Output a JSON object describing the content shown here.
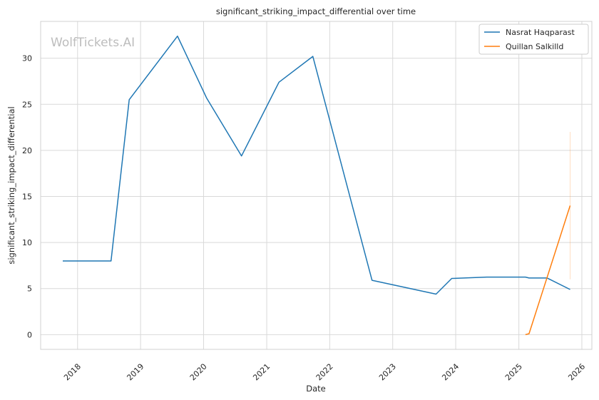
{
  "chart_data": {
    "type": "line",
    "title": "significant_striking_impact_differential over time",
    "xlabel": "Date",
    "ylabel": "significant_striking_impact_differential",
    "xlim": [
      "2017-06-01",
      "2026-02-28"
    ],
    "ylim": [
      -1.6,
      34.0
    ],
    "x_ticks": [
      "2018",
      "2019",
      "2020",
      "2021",
      "2022",
      "2023",
      "2024",
      "2025",
      "2026"
    ],
    "y_ticks": [
      0,
      5,
      10,
      15,
      20,
      25,
      30
    ],
    "grid": true,
    "legend_position": "top-right",
    "watermark": "WolfTickets.AI",
    "series": [
      {
        "name": "Nasrat Haqparast",
        "color": "#1f77b4",
        "points": [
          {
            "date": "2017-10-07",
            "value": 8.0
          },
          {
            "date": "2018-07-14",
            "value": 8.0
          },
          {
            "date": "2018-10-27",
            "value": 25.5
          },
          {
            "date": "2019-08-03",
            "value": 32.4
          },
          {
            "date": "2020-01-18",
            "value": 25.7
          },
          {
            "date": "2020-08-08",
            "value": 19.4
          },
          {
            "date": "2021-03-13",
            "value": 27.4
          },
          {
            "date": "2021-09-25",
            "value": 30.2
          },
          {
            "date": "2022-09-03",
            "value": 5.9
          },
          {
            "date": "2023-09-09",
            "value": 4.4
          },
          {
            "date": "2023-12-09",
            "value": 6.1
          },
          {
            "date": "2024-06-29",
            "value": 6.25
          },
          {
            "date": "2025-02-08",
            "value": 6.25
          },
          {
            "date": "2025-03-01",
            "value": 6.15
          },
          {
            "date": "2025-06-14",
            "value": 6.15
          },
          {
            "date": "2025-10-25",
            "value": 4.9
          }
        ]
      },
      {
        "name": "Quillan Salkilld",
        "color": "#ff7f0e",
        "points": [
          {
            "date": "2025-02-08",
            "value": 0.0
          },
          {
            "date": "2025-03-01",
            "value": 0.1
          },
          {
            "date": "2025-10-25",
            "value": 14.0
          }
        ],
        "band": {
          "date": "2025-10-25",
          "low": 6.0,
          "high": 22.0
        }
      }
    ]
  }
}
